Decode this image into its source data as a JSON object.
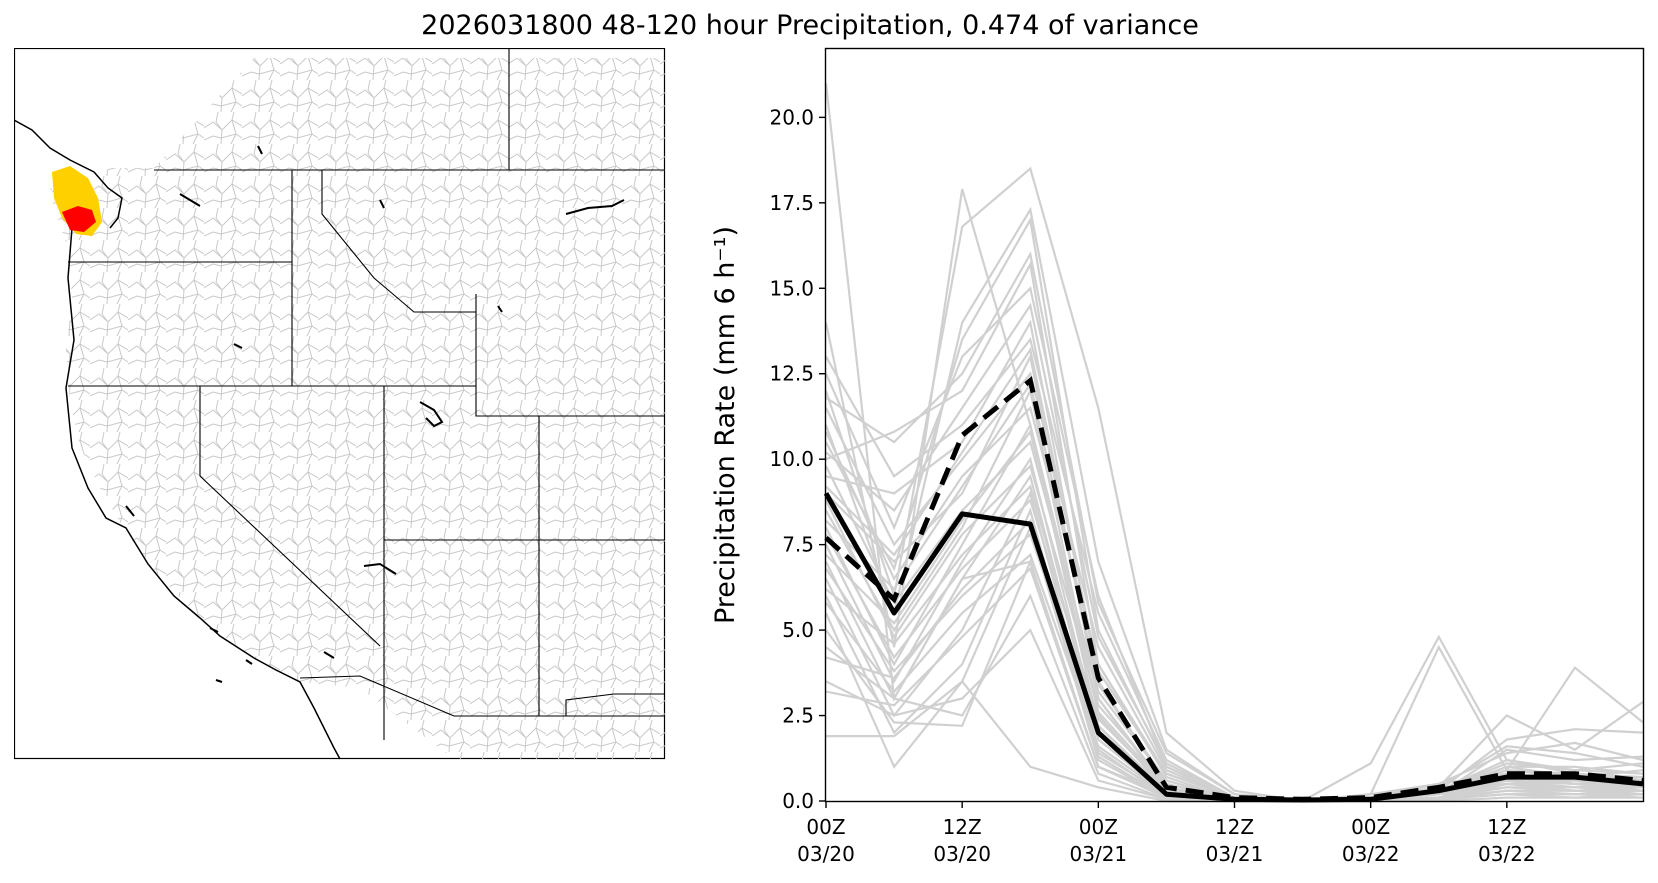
{
  "figure": {
    "title": "2026031800 48-120 hour Precipitation, 0.474 of variance"
  },
  "map": {
    "description_colors": {
      "basin_lines": "#c8c8c8",
      "boundaries": "#000000",
      "highlight_high": "#ff0000",
      "highlight_mid": "#ffd000"
    }
  },
  "chart_data": {
    "type": "line",
    "title": "2026031800 48-120 hour Precipitation, 0.474 of variance",
    "ylabel": "Precipitation Rate (mm 6 h⁻¹)",
    "xlabel": "",
    "ylim": [
      0,
      22
    ],
    "yticks": [
      0.0,
      2.5,
      5.0,
      7.5,
      10.0,
      12.5,
      15.0,
      17.5,
      20.0
    ],
    "ytick_labels": [
      "0.0",
      "2.5",
      "5.0",
      "7.5",
      "10.0",
      "12.5",
      "15.0",
      "17.5",
      "20.0"
    ],
    "x_hours": [
      0,
      6,
      12,
      18,
      24,
      30,
      36,
      42,
      48,
      54,
      60,
      66,
      72
    ],
    "xlim_hours": [
      0,
      72
    ],
    "xticks_hours": [
      0,
      12,
      24,
      36,
      48,
      60
    ],
    "xtick_labels": [
      [
        "00Z",
        "03/20"
      ],
      [
        "12Z",
        "03/20"
      ],
      [
        "00Z",
        "03/21"
      ],
      [
        "12Z",
        "03/21"
      ],
      [
        "00Z",
        "03/22"
      ],
      [
        "12Z",
        "03/22"
      ]
    ],
    "colors": {
      "members": "#d0d0d0",
      "mean": "#000000",
      "dashed": "#000000"
    },
    "mean_series": [
      9.0,
      5.5,
      8.4,
      8.1,
      2.0,
      0.2,
      0.05,
      0.03,
      0.05,
      0.3,
      0.7,
      0.7,
      0.5
    ],
    "dashed_series": [
      7.7,
      5.9,
      10.7,
      12.3,
      3.6,
      0.4,
      0.1,
      0.05,
      0.1,
      0.4,
      0.8,
      0.8,
      0.6
    ],
    "members": [
      [
        21.0,
        3.0,
        6.5,
        7.0,
        1.0,
        0.2,
        0.05,
        0.0,
        0.05,
        0.2,
        0.4,
        0.3,
        0.3
      ],
      [
        14.0,
        4.5,
        17.9,
        11.0,
        3.0,
        0.3,
        0.1,
        0.0,
        0.1,
        0.3,
        0.5,
        0.6,
        0.4
      ],
      [
        12.0,
        6.0,
        16.8,
        18.5,
        11.5,
        2.0,
        0.3,
        0.0,
        0.2,
        0.5,
        0.8,
        0.5,
        0.3
      ],
      [
        11.0,
        5.5,
        14.0,
        17.3,
        7.0,
        1.5,
        0.2,
        0.0,
        1.1,
        4.8,
        1.2,
        0.8,
        0.6
      ],
      [
        10.5,
        6.8,
        13.5,
        17.0,
        5.0,
        1.0,
        0.1,
        0.0,
        0.2,
        4.5,
        0.9,
        3.9,
        2.3
      ],
      [
        10.0,
        10.8,
        12.0,
        15.7,
        4.0,
        0.8,
        0.1,
        0.0,
        0.1,
        0.4,
        2.5,
        1.5,
        2.9
      ],
      [
        9.5,
        9.0,
        10.5,
        14.0,
        3.5,
        0.5,
        0.05,
        0.0,
        0.1,
        0.3,
        1.8,
        2.1,
        2.0
      ],
      [
        9.0,
        7.0,
        9.0,
        13.0,
        3.0,
        0.4,
        0.05,
        0.0,
        0.05,
        0.2,
        1.5,
        1.2,
        1.3
      ],
      [
        8.5,
        5.0,
        8.0,
        12.0,
        2.5,
        0.3,
        0.05,
        0.0,
        0.05,
        0.3,
        1.2,
        0.9,
        1.1
      ],
      [
        8.0,
        4.0,
        7.5,
        11.0,
        2.2,
        0.2,
        0.0,
        0.0,
        0.05,
        0.2,
        1.0,
        0.7,
        0.9
      ],
      [
        7.5,
        3.5,
        7.0,
        10.0,
        2.0,
        0.2,
        0.0,
        0.0,
        0.05,
        0.2,
        0.8,
        0.6,
        0.7
      ],
      [
        7.0,
        3.0,
        6.5,
        9.5,
        1.8,
        0.2,
        0.0,
        0.0,
        0.0,
        0.1,
        0.7,
        0.5,
        0.6
      ],
      [
        6.5,
        2.5,
        5.0,
        9.0,
        1.5,
        0.1,
        0.0,
        0.0,
        0.0,
        0.1,
        0.6,
        0.4,
        0.5
      ],
      [
        6.0,
        2.0,
        4.0,
        8.5,
        1.3,
        0.1,
        0.0,
        0.0,
        0.0,
        0.1,
        0.5,
        0.3,
        0.4
      ],
      [
        5.5,
        1.0,
        3.5,
        8.0,
        1.2,
        0.1,
        0.0,
        0.0,
        0.0,
        0.1,
        0.4,
        0.3,
        0.3
      ],
      [
        5.0,
        2.3,
        2.2,
        7.0,
        1.0,
        0.1,
        0.0,
        0.0,
        0.0,
        0.05,
        0.3,
        0.2,
        0.3
      ],
      [
        4.5,
        3.0,
        2.5,
        6.0,
        0.8,
        0.05,
        0.0,
        0.0,
        0.0,
        0.05,
        0.2,
        0.2,
        0.2
      ],
      [
        3.5,
        2.5,
        3.0,
        5.0,
        0.6,
        0.05,
        0.0,
        0.0,
        0.0,
        0.05,
        0.2,
        0.1,
        0.2
      ],
      [
        1.9,
        1.9,
        3.5,
        1.0,
        0.4,
        0.0,
        0.0,
        0.0,
        0.0,
        0.0,
        0.1,
        0.1,
        0.1
      ],
      [
        13.0,
        9.5,
        11.0,
        13.5,
        5.5,
        1.2,
        0.1,
        0.0,
        0.1,
        0.5,
        1.4,
        1.7,
        1.2
      ],
      [
        12.5,
        8.0,
        13.0,
        15.0,
        6.0,
        1.0,
        0.1,
        0.0,
        0.1,
        0.3,
        1.0,
        1.0,
        0.8
      ],
      [
        11.5,
        7.5,
        10.0,
        12.5,
        4.5,
        0.9,
        0.1,
        0.0,
        0.1,
        0.3,
        0.9,
        0.8,
        0.7
      ],
      [
        10.8,
        6.5,
        9.5,
        11.5,
        4.0,
        0.7,
        0.05,
        0.0,
        0.05,
        0.2,
        0.7,
        0.6,
        0.5
      ],
      [
        9.8,
        5.8,
        8.5,
        10.5,
        3.2,
        0.6,
        0.05,
        0.0,
        0.05,
        0.2,
        0.6,
        0.5,
        0.4
      ],
      [
        8.8,
        4.8,
        7.8,
        9.8,
        2.8,
        0.5,
        0.05,
        0.0,
        0.05,
        0.1,
        0.5,
        0.4,
        0.4
      ],
      [
        7.8,
        4.2,
        6.8,
        8.8,
        2.4,
        0.4,
        0.0,
        0.0,
        0.0,
        0.1,
        0.4,
        0.4,
        0.3
      ],
      [
        6.8,
        3.8,
        6.0,
        7.8,
        2.0,
        0.3,
        0.0,
        0.0,
        0.0,
        0.1,
        0.3,
        0.3,
        0.2
      ],
      [
        5.8,
        3.2,
        5.5,
        7.2,
        1.6,
        0.2,
        0.0,
        0.0,
        0.0,
        0.05,
        0.3,
        0.2,
        0.2
      ],
      [
        11.8,
        10.5,
        12.5,
        16.0,
        5.8,
        1.4,
        0.2,
        0.0,
        0.1,
        0.4,
        1.6,
        1.4,
        1.0
      ],
      [
        10.2,
        8.5,
        11.5,
        14.5,
        4.8,
        1.1,
        0.1,
        0.0,
        0.1,
        0.3,
        1.1,
        0.9,
        0.8
      ],
      [
        9.2,
        7.2,
        10.2,
        13.2,
        3.8,
        0.8,
        0.1,
        0.0,
        0.05,
        0.2,
        0.9,
        0.7,
        0.6
      ],
      [
        8.2,
        6.2,
        9.2,
        12.2,
        3.4,
        0.6,
        0.05,
        0.0,
        0.05,
        0.2,
        0.7,
        0.6,
        0.5
      ],
      [
        7.2,
        5.2,
        8.2,
        10.8,
        2.6,
        0.4,
        0.05,
        0.0,
        0.05,
        0.1,
        0.6,
        0.5,
        0.4
      ],
      [
        6.2,
        4.6,
        7.2,
        9.2,
        2.2,
        0.3,
        0.0,
        0.0,
        0.0,
        0.1,
        0.5,
        0.4,
        0.3
      ],
      [
        4.2,
        3.6,
        6.2,
        8.2,
        1.4,
        0.2,
        0.0,
        0.0,
        0.0,
        0.05,
        0.3,
        0.3,
        0.2
      ],
      [
        3.2,
        2.8,
        4.8,
        6.8,
        1.0,
        0.1,
        0.0,
        0.0,
        0.0,
        0.05,
        0.2,
        0.2,
        0.1
      ]
    ]
  }
}
